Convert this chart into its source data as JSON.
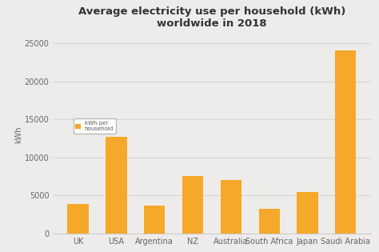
{
  "title": "Average electricity use per household (kWh)\nworldwide in 2018",
  "ylabel": "kWh",
  "categories": [
    "UK",
    "USA",
    "Argentina",
    "NZ",
    "Australia",
    "South Africa",
    "Japan",
    "Saudi Arabia"
  ],
  "values": [
    3900,
    12700,
    3700,
    7500,
    7000,
    3200,
    5400,
    24000
  ],
  "bar_color": "#F5A82A",
  "background_color": "#EEECEA",
  "ylim": [
    0,
    26000
  ],
  "yticks": [
    0,
    5000,
    10000,
    15000,
    20000,
    25000
  ],
  "title_fontsize": 9.5,
  "axis_fontsize": 7,
  "tick_fontsize": 7,
  "legend_label": "kWh per\nhousehold"
}
